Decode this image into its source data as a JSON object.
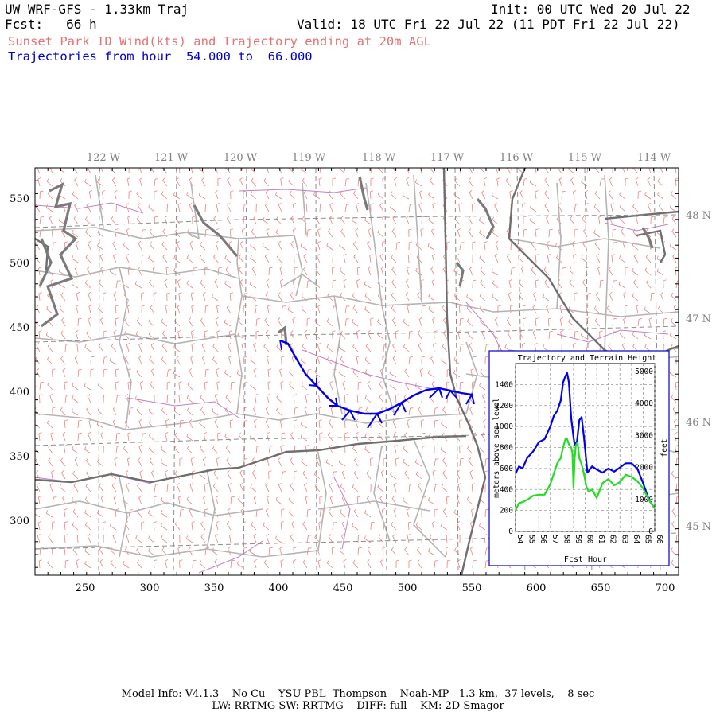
{
  "header": {
    "title": "UW WRF-GFS - 1.33km Traj",
    "fcst_label": "Fcst:   66 h",
    "init": "Init: 00 UTC Wed 20 Jul 22",
    "valid": "Valid: 18 UTC Fri 22 Jul 22 (11 PDT Fri 22 Jul 22)",
    "subtitle": "Sunset Park ID Wind(kts) and Trajectory ending at 20m AGL",
    "traj_range": "Trajectories from hour  54.000 to  66.000"
  },
  "map": {
    "lon_labels": [
      "122 W",
      "121 W",
      "120 W",
      "119 W",
      "118 W",
      "117 W",
      "116 W",
      "115 W",
      "114 W"
    ],
    "lat_labels": [
      "48 N",
      "47 N",
      "46 N",
      "45 N"
    ],
    "x_ticks": [
      "250",
      "300",
      "350",
      "400",
      "450",
      "500",
      "550",
      "600",
      "650",
      "700"
    ],
    "y_ticks": [
      "550",
      "500",
      "450",
      "400",
      "350",
      "300"
    ],
    "colors": {
      "wind_barbs": "#f08080",
      "county_lines": "#b0b0b0",
      "state_lines": "#707070",
      "rivers": "#c080c0",
      "trajectory": "#0000ee",
      "lat_lon_grid": "#888888"
    }
  },
  "inset": {
    "title": "Trajectory and Terrain Height",
    "ylabel_left": "meters above sea level",
    "ylabel_right": "feet",
    "xlabel": "Fcst Hour",
    "colors": {
      "trajectory_height": "#0000ee",
      "terrain_height": "#22dd22"
    },
    "chart_data": {
      "type": "line",
      "x_label": "Fcst Hour",
      "xlim": [
        54,
        66
      ],
      "ylim": [
        0,
        1600
      ],
      "x_ticks": [
        "54",
        "55",
        "56",
        "57",
        "58",
        "59",
        "60",
        "61",
        "62",
        "63",
        "64",
        "65",
        "66"
      ],
      "y_ticks_left": [
        "0",
        "200",
        "400",
        "600",
        "800",
        "1000",
        "1200",
        "1400"
      ],
      "y_ticks_right": [
        "0",
        "1000",
        "2000",
        "3000",
        "4000",
        "5000"
      ],
      "series": [
        {
          "x": [
            54,
            54.3,
            54.6,
            55,
            55.5,
            56,
            56.5,
            57,
            57.3,
            57.6,
            57.9,
            58.1,
            58.3,
            58.45,
            58.6,
            58.8,
            59,
            59.1,
            59.3,
            59.5,
            59.7,
            59.9,
            60.2,
            60.6,
            61,
            61.5,
            62,
            62.5,
            63,
            63.5,
            64,
            64.5,
            65,
            65.5,
            66
          ],
          "y": [
            550,
            620,
            600,
            700,
            760,
            850,
            880,
            1000,
            1100,
            1150,
            1250,
            1420,
            1480,
            1510,
            1420,
            1080,
            900,
            820,
            860,
            1060,
            1090,
            900,
            560,
            620,
            590,
            560,
            600,
            570,
            610,
            650,
            650,
            600,
            460,
            300,
            220
          ]
        },
        {
          "x": [
            54,
            54.3,
            54.6,
            55,
            55.5,
            56,
            56.5,
            57,
            57.3,
            57.6,
            57.9,
            58.1,
            58.3,
            58.45,
            58.6,
            58.8,
            58.9,
            59,
            59.1,
            59.2,
            59.35,
            59.5,
            59.7,
            59.9,
            60.1,
            60.3,
            60.6,
            61,
            61.5,
            62,
            62.5,
            63,
            63.5,
            64,
            64.5,
            65,
            65.5,
            66
          ],
          "y": [
            200,
            270,
            280,
            300,
            340,
            350,
            350,
            450,
            550,
            650,
            700,
            800,
            880,
            880,
            830,
            800,
            750,
            420,
            700,
            820,
            850,
            700,
            640,
            550,
            430,
            380,
            400,
            320,
            460,
            500,
            440,
            470,
            540,
            520,
            480,
            410,
            300,
            220
          ]
        }
      ]
    }
  },
  "footer": {
    "line1": "Model Info: V4.1.3    No Cu    YSU PBL  Thompson    Noah-MP   1.3 km,  37 levels,    8 sec",
    "line2": "LW: RRTMG SW: RRTMG    DIFF: full    KM: 2D Smagor"
  }
}
